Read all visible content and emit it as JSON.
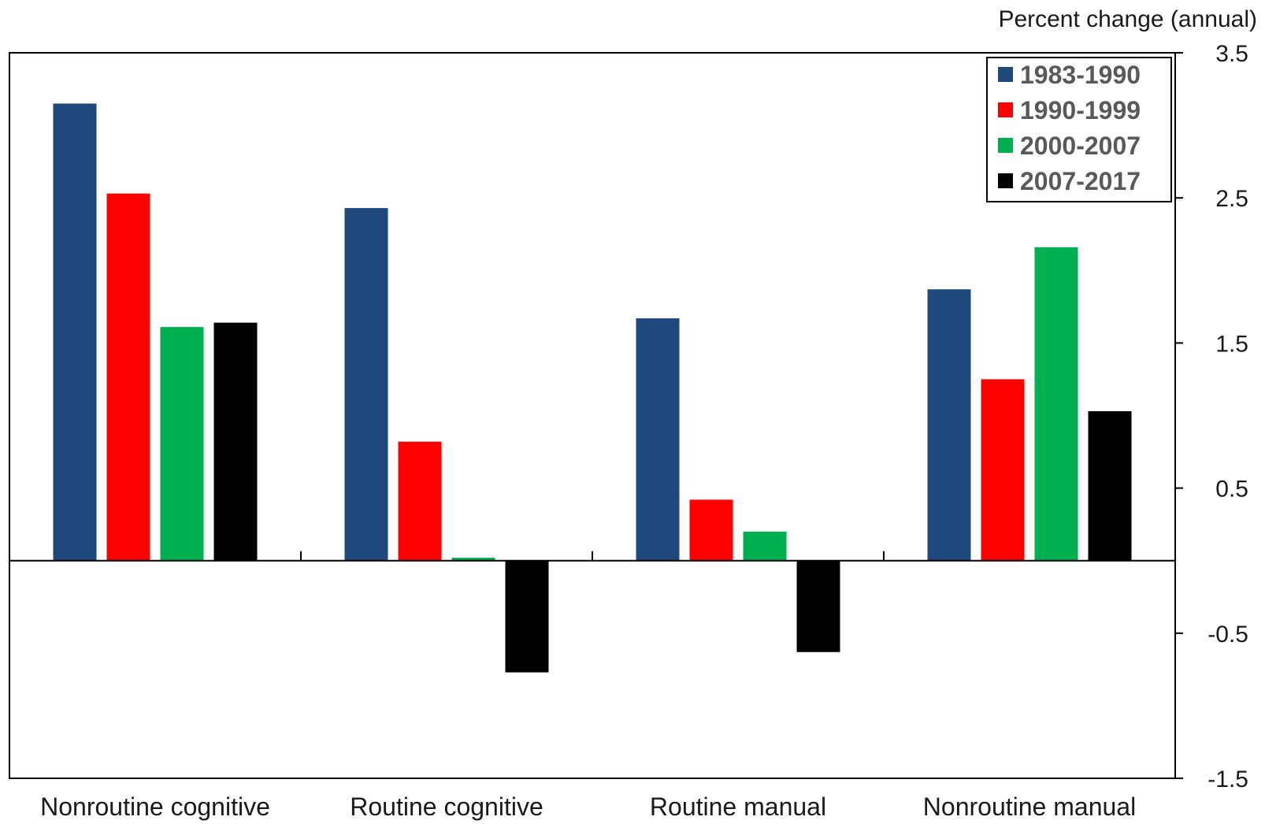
{
  "chart_data": {
    "type": "bar",
    "title": "",
    "xlabel": "",
    "ylabel": "Percent change  (annual)",
    "ylim": [
      -1.5,
      3.5
    ],
    "yticks": [
      "3.5",
      "2.5",
      "1.5",
      "0.5",
      "-0.5",
      "-1.5"
    ],
    "ytick_values": [
      3.5,
      2.5,
      1.5,
      0.5,
      -0.5,
      -1.5
    ],
    "y_axis_side": "right",
    "grid": false,
    "legend_position": "top-right",
    "categories": [
      "Nonroutine cognitive",
      "Routine cognitive",
      "Routine manual",
      "Nonroutine manual"
    ],
    "series": [
      {
        "name": "1983-1990",
        "color": "#1f497d",
        "values": [
          3.15,
          2.43,
          1.67,
          1.87
        ]
      },
      {
        "name": "1990-1999",
        "color": "#ff0000",
        "values": [
          2.53,
          0.82,
          0.42,
          1.25
        ]
      },
      {
        "name": "2000-2007",
        "color": "#00b050",
        "values": [
          1.61,
          0.02,
          0.2,
          2.16
        ]
      },
      {
        "name": "2007-2017",
        "color": "#000000",
        "values": [
          1.64,
          -0.77,
          -0.63,
          1.03
        ]
      }
    ]
  }
}
